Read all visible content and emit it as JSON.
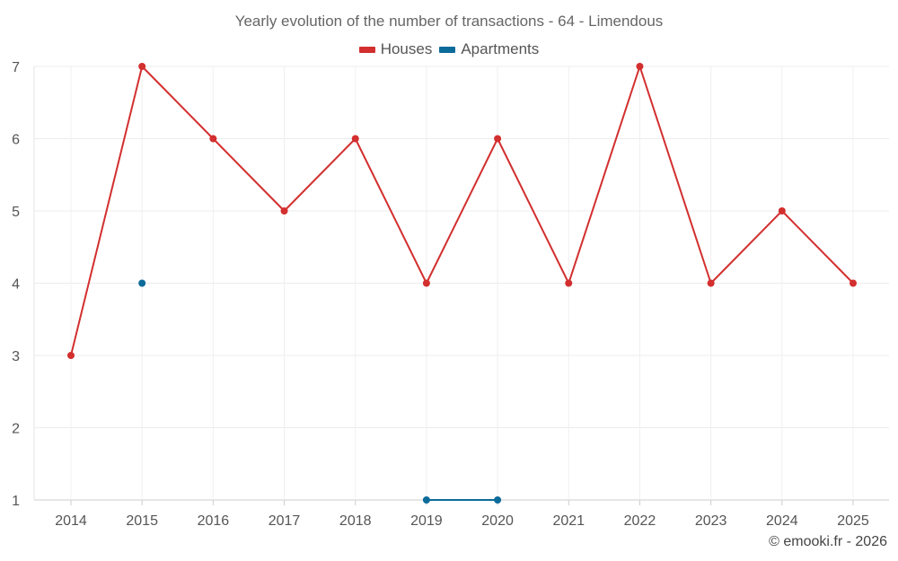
{
  "chart_data": {
    "type": "line",
    "title": "Yearly evolution of the number of transactions - 64 - Limendous",
    "xlabel": "",
    "ylabel": "",
    "categories": [
      "2014",
      "2015",
      "2016",
      "2017",
      "2018",
      "2019",
      "2020",
      "2021",
      "2022",
      "2023",
      "2024",
      "2025"
    ],
    "y_ticks": [
      1,
      2,
      3,
      4,
      5,
      6,
      7
    ],
    "ylim": [
      1,
      7
    ],
    "grid": true,
    "legend_position": "top-center",
    "series": [
      {
        "name": "Houses",
        "color": "#d32f2f",
        "values": [
          3,
          7,
          6,
          5,
          6,
          4,
          6,
          4,
          7,
          4,
          5,
          4
        ]
      },
      {
        "name": "Apartments",
        "color": "#0d6b9a",
        "values": [
          null,
          4,
          null,
          null,
          null,
          1,
          1,
          null,
          null,
          null,
          null,
          null
        ]
      }
    ]
  },
  "credit": "© emooki.fr - 2026"
}
